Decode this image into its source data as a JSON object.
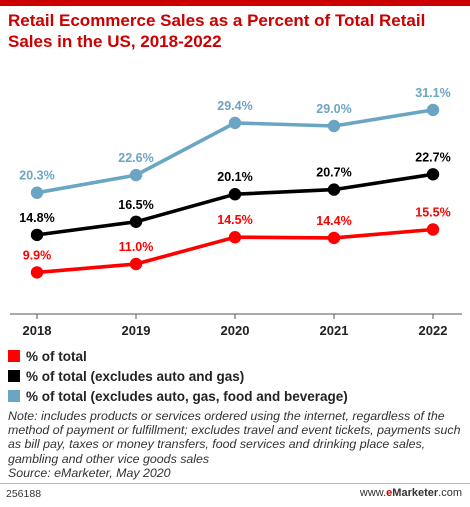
{
  "title": "Retail Ecommerce Sales as a Percent of Total Retail Sales in the US, 2018-2022",
  "colors": {
    "red": "#ff0000",
    "black": "#000000",
    "blue": "#6aa6c4",
    "title": "#cc0000"
  },
  "chart_data": {
    "type": "line",
    "x": [
      "2018",
      "2019",
      "2020",
      "2021",
      "2022"
    ],
    "ylim": [
      5,
      35
    ],
    "grid": false,
    "legend_placement": "bottom",
    "series": [
      {
        "name": "% of total",
        "color": "#ff0000",
        "values": [
          9.9,
          11.0,
          14.5,
          14.4,
          15.5
        ],
        "labels": [
          "9.9%",
          "11.0%",
          "14.5%",
          "14.4%",
          "15.5%"
        ]
      },
      {
        "name": "% of total (excludes auto and gas)",
        "color": "#000000",
        "values": [
          14.8,
          16.5,
          20.1,
          20.7,
          22.7
        ],
        "labels": [
          "14.8%",
          "16.5%",
          "20.1%",
          "20.7%",
          "22.7%"
        ]
      },
      {
        "name": "% of total (excludes auto, gas, food and beverage)",
        "color": "#6aa6c4",
        "values": [
          20.3,
          22.6,
          29.4,
          29.0,
          31.1
        ],
        "labels": [
          "20.3%",
          "22.6%",
          "29.4%",
          "29.0%",
          "31.1%"
        ]
      }
    ]
  },
  "legend": [
    {
      "label": "% of total",
      "color": "#ff0000"
    },
    {
      "label": "% of total (excludes auto and gas)",
      "color": "#000000"
    },
    {
      "label": "% of total (excludes auto, gas, food and beverage)",
      "color": "#6aa6c4"
    }
  ],
  "note": "Note: includes products or services ordered using the internet, regardless of the method of payment or fulfillment; excludes travel and event tickets, payments such as bill pay, taxes or money transfers, food services and drinking place sales, gambling and other vice goods sales",
  "source": "Source: eMarketer, May 2020",
  "footer": {
    "id": "256188",
    "url_prefix": "www.",
    "brand_e": "e",
    "brand_rest": "Marketer",
    "url_suffix": ".com"
  }
}
